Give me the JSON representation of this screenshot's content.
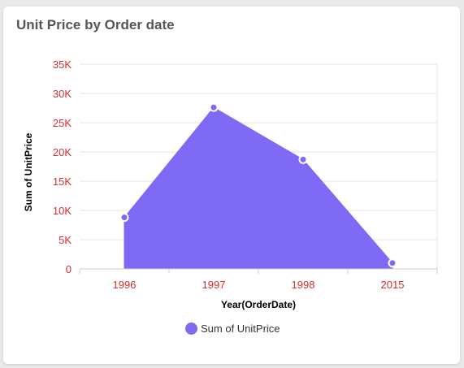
{
  "card": {
    "title": "Unit Price by Order date"
  },
  "colors": {
    "series": "#7f6af5",
    "tick_label": "#d32f2f",
    "axis_title": "#000000",
    "grid": "#e6e6e6"
  },
  "chart_data": {
    "type": "area",
    "title": "Unit Price by Order date",
    "xlabel": "Year(OrderDate)",
    "ylabel": "Sum of UnitPrice",
    "categories": [
      "1996",
      "1997",
      "1998",
      "2015"
    ],
    "series": [
      {
        "name": "Sum of UnitPrice",
        "values": [
          8800,
          27600,
          18700,
          1000
        ]
      }
    ],
    "ylim": [
      0,
      35000
    ],
    "y_ticks": [
      {
        "value": 0,
        "label": "0"
      },
      {
        "value": 5000,
        "label": "5K"
      },
      {
        "value": 10000,
        "label": "10K"
      },
      {
        "value": 15000,
        "label": "15K"
      },
      {
        "value": 20000,
        "label": "20K"
      },
      {
        "value": 25000,
        "label": "25K"
      },
      {
        "value": 30000,
        "label": "30K"
      },
      {
        "value": 35000,
        "label": "35K"
      }
    ],
    "grid": true,
    "legend": "bottom-center"
  }
}
